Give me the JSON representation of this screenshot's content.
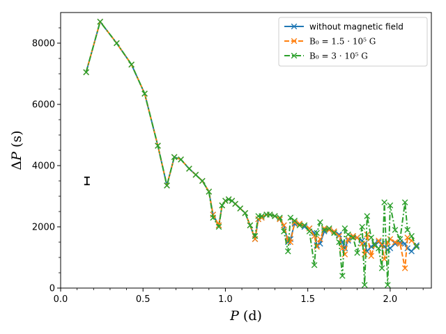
{
  "chart_data": {
    "type": "line",
    "title": "",
    "xlabel_var": "P",
    "xlabel_unit": "(d)",
    "ylabel_pre": "Δ",
    "ylabel_var": "P",
    "ylabel_unit": "(s)",
    "xlim": [
      0.0,
      2.25
    ],
    "ylim": [
      0,
      9000
    ],
    "xticks": [
      0.0,
      0.5,
      1.0,
      1.5,
      2.0
    ],
    "xtick_labels": [
      "0.0",
      "0.5",
      "1.0",
      "1.5",
      "2.0"
    ],
    "yticks": [
      0,
      2000,
      4000,
      6000,
      8000
    ],
    "ytick_labels": [
      "0",
      "2000",
      "4000",
      "6000",
      "8000"
    ],
    "grid": false,
    "legend_position": "top-right",
    "error_bar": {
      "x": 0.16,
      "y": 3500,
      "yerr": 120
    },
    "series": [
      {
        "name": "without magnetic field",
        "legend_label": "without magnetic field",
        "color": "#1f77b4",
        "linestyle": "solid",
        "marker": "x",
        "x": [
          0.155,
          0.24,
          0.34,
          0.43,
          0.51,
          0.59,
          0.645,
          0.69,
          0.73,
          0.78,
          0.82,
          0.86,
          0.9,
          0.925,
          0.96,
          0.98,
          1.0,
          1.02,
          1.04,
          1.06,
          1.09,
          1.12,
          1.15,
          1.18,
          1.2,
          1.22,
          1.25,
          1.27,
          1.3,
          1.33,
          1.355,
          1.38,
          1.395,
          1.42,
          1.45,
          1.48,
          1.51,
          1.54,
          1.555,
          1.575,
          1.6,
          1.63,
          1.66,
          1.69,
          1.71,
          1.725,
          1.745,
          1.775,
          1.8,
          1.83,
          1.845,
          1.86,
          1.885,
          1.905,
          1.93,
          1.95,
          1.965,
          1.985,
          2.0,
          2.03,
          2.06,
          2.09,
          2.105,
          2.13,
          2.16
        ],
        "y": [
          7050,
          8700,
          8000,
          7300,
          6350,
          4650,
          3350,
          4280,
          4200,
          3900,
          3700,
          3500,
          3150,
          2400,
          2050,
          2700,
          2850,
          2900,
          2850,
          2750,
          2600,
          2450,
          2050,
          1600,
          2250,
          2300,
          2400,
          2400,
          2350,
          2250,
          2050,
          1500,
          1600,
          2100,
          2100,
          2000,
          1950,
          1800,
          1400,
          1450,
          1850,
          1900,
          1850,
          1750,
          1500,
          1300,
          1550,
          1700,
          1650,
          1550,
          1450,
          1200,
          1350,
          1450,
          1500,
          1450,
          1350,
          1250,
          1300,
          1450,
          1500,
          1450,
          1300,
          1200,
          1400
        ]
      },
      {
        "name": "B0 = 1.5e5 G",
        "legend_label": "B₀ = 1.5 · 10⁵ G",
        "color": "#ff7f0e",
        "linestyle": "dashed",
        "marker": "x",
        "x": [
          0.155,
          0.24,
          0.34,
          0.43,
          0.51,
          0.59,
          0.645,
          0.69,
          0.73,
          0.78,
          0.82,
          0.86,
          0.9,
          0.925,
          0.96,
          0.98,
          1.0,
          1.02,
          1.04,
          1.06,
          1.09,
          1.12,
          1.15,
          1.18,
          1.2,
          1.22,
          1.25,
          1.27,
          1.3,
          1.33,
          1.355,
          1.38,
          1.395,
          1.42,
          1.45,
          1.48,
          1.51,
          1.54,
          1.555,
          1.575,
          1.6,
          1.63,
          1.66,
          1.69,
          1.71,
          1.725,
          1.745,
          1.775,
          1.8,
          1.83,
          1.845,
          1.86,
          1.885,
          1.905,
          1.93,
          1.95,
          1.965,
          1.985,
          2.0,
          2.03,
          2.06,
          2.09,
          2.105,
          2.13,
          2.16
        ],
        "y": [
          7050,
          8700,
          8000,
          7300,
          6350,
          4650,
          3350,
          4280,
          4200,
          3900,
          3700,
          3500,
          3150,
          2400,
          2050,
          2700,
          2850,
          2900,
          2850,
          2750,
          2600,
          2450,
          2050,
          1600,
          2250,
          2300,
          2400,
          2400,
          2350,
          2250,
          2050,
          1550,
          1500,
          2150,
          2100,
          2050,
          1950,
          1700,
          1350,
          1600,
          1950,
          1900,
          1850,
          1700,
          1300,
          1100,
          1600,
          1700,
          1650,
          1450,
          1100,
          1750,
          1050,
          1400,
          1550,
          1400,
          950,
          1500,
          1600,
          1500,
          1450,
          650,
          1650,
          1550,
          1350
        ]
      },
      {
        "name": "B0 = 3e5 G",
        "legend_label": "B₀ = 3 · 10⁵ G",
        "color": "#2ca02c",
        "linestyle": "dashdot",
        "marker": "x",
        "x": [
          0.155,
          0.24,
          0.34,
          0.43,
          0.51,
          0.59,
          0.645,
          0.69,
          0.73,
          0.78,
          0.82,
          0.86,
          0.9,
          0.925,
          0.96,
          0.98,
          1.0,
          1.02,
          1.04,
          1.06,
          1.09,
          1.12,
          1.15,
          1.18,
          1.2,
          1.22,
          1.25,
          1.27,
          1.3,
          1.33,
          1.355,
          1.38,
          1.395,
          1.42,
          1.45,
          1.48,
          1.51,
          1.54,
          1.555,
          1.575,
          1.6,
          1.63,
          1.66,
          1.69,
          1.71,
          1.725,
          1.745,
          1.775,
          1.8,
          1.83,
          1.845,
          1.86,
          1.885,
          1.905,
          1.93,
          1.95,
          1.965,
          1.985,
          2.0,
          2.03,
          2.06,
          2.09,
          2.105,
          2.13,
          2.16
        ],
        "y": [
          7050,
          8700,
          8000,
          7300,
          6350,
          4650,
          3350,
          4280,
          4200,
          3900,
          3700,
          3500,
          3150,
          2300,
          2000,
          2700,
          2850,
          2900,
          2850,
          2750,
          2600,
          2450,
          2050,
          1700,
          2350,
          2350,
          2400,
          2400,
          2350,
          2300,
          1850,
          1200,
          2300,
          2200,
          2050,
          2050,
          1850,
          750,
          1800,
          2150,
          1900,
          1950,
          1800,
          1500,
          400,
          1950,
          1750,
          1650,
          1150,
          2000,
          100,
          2350,
          1650,
          1400,
          1300,
          650,
          2800,
          100,
          2700,
          1900,
          1600,
          2800,
          1900,
          1700,
          1350
        ]
      }
    ]
  }
}
